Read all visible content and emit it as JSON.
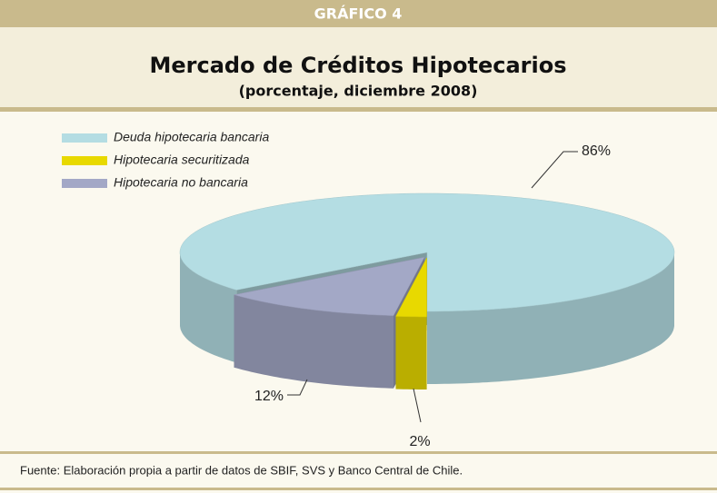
{
  "chart_data": {
    "type": "pie3d",
    "header": "GRÁFICO 4",
    "title": "Mercado de Créditos Hipotecarios",
    "subtitle": "(porcentaje, diciembre 2008)",
    "categories": [
      "Deuda hipotecaria bancaria",
      "Hipotecaria securitizada",
      "Hipotecaria no bancaria"
    ],
    "values": [
      86,
      2,
      12
    ],
    "value_labels": [
      "86%",
      "2%",
      "12%"
    ],
    "colors": [
      "#b4dde3",
      "#e8d900",
      "#a3a8c6"
    ],
    "legend": "top-left",
    "source": "Fuente: Elaboración propia a partir de datos de SBIF, SVS y Banco Central de Chile."
  }
}
